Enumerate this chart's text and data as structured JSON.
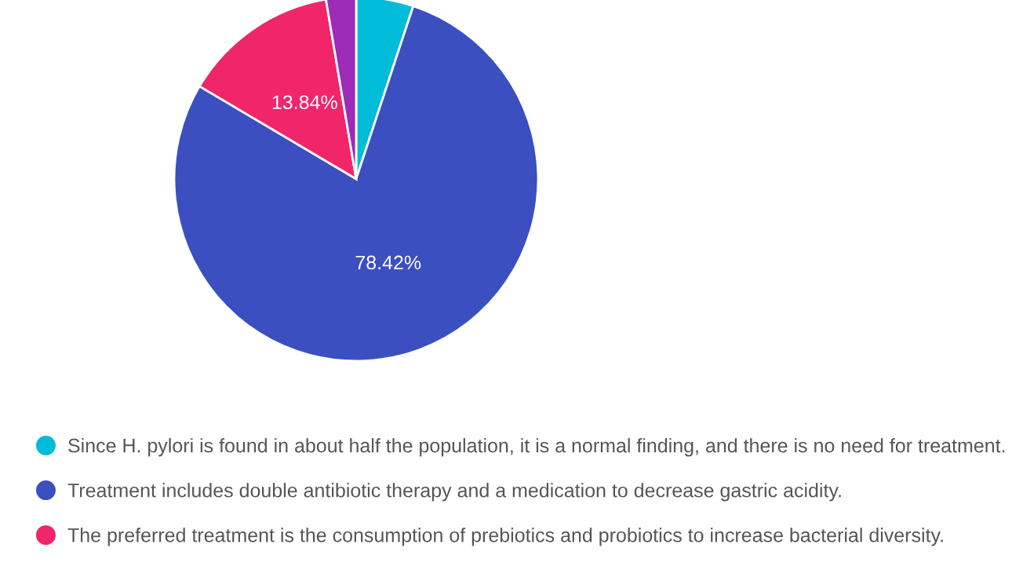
{
  "chart_data": {
    "type": "pie",
    "categories": [
      "Since H. pylori is found in about half the population, it is a normal finding, and there is no need for treatment.",
      "Treatment includes double antibiotic therapy and a medication to decrease gastric acidity.",
      "The preferred treatment is the consumption of prebiotics and probiotics to increase bacterial diversity.",
      null
    ],
    "values": [
      5.08,
      78.42,
      13.84,
      2.66
    ],
    "colors": [
      "#00bcd8",
      "#3b4fc0",
      "#f0256a",
      "#9c2bb8"
    ],
    "value_labels": [
      null,
      "78.42%",
      "13.84%",
      null
    ],
    "legend": "bottom"
  }
}
